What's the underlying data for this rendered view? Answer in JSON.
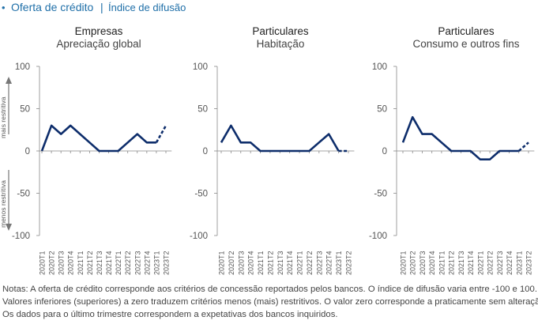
{
  "header": {
    "bullet": "•",
    "title": "Oferta de crédito",
    "separator": "|",
    "subtitle": "Índice de difusão"
  },
  "side_labels": {
    "top": "mais restritiva",
    "bottom": "menos restritiva"
  },
  "colors": {
    "line": "#0d2d6b",
    "header": "#1f6fa8",
    "axis": "#888888"
  },
  "chart_data": [
    {
      "type": "line",
      "title": "Empresas",
      "subtitle": "Apreciação global",
      "categories": [
        "2020T1",
        "2020T2",
        "2020T3",
        "2020T4",
        "2021T1",
        "2021T2",
        "2021T3",
        "2021T4",
        "2022T1",
        "2022T2",
        "2022T3",
        "2022T4",
        "2023T1",
        "2023T2"
      ],
      "values": [
        0,
        30,
        20,
        30,
        20,
        10,
        0,
        0,
        0,
        10,
        20,
        10,
        10,
        30
      ],
      "expectation_last": true,
      "ylim": [
        -100,
        100
      ],
      "yticks": [
        100,
        50,
        0,
        -50,
        -100
      ]
    },
    {
      "type": "line",
      "title": "Particulares",
      "subtitle": "Habitação",
      "categories": [
        "2020T1",
        "2020T2",
        "2020T3",
        "2020T4",
        "2021T1",
        "2021T2",
        "2021T3",
        "2021T4",
        "2022T1",
        "2022T2",
        "2022T3",
        "2022T4",
        "2023T1",
        "2023T2"
      ],
      "values": [
        10,
        30,
        10,
        10,
        0,
        0,
        0,
        0,
        0,
        0,
        10,
        20,
        0,
        0
      ],
      "expectation_last": true,
      "ylim": [
        -100,
        100
      ],
      "yticks": [
        100,
        50,
        0,
        -50,
        -100
      ]
    },
    {
      "type": "line",
      "title": "Particulares",
      "subtitle": "Consumo e outros fins",
      "categories": [
        "2020T1",
        "2020T2",
        "2020T3",
        "2020T4",
        "2021T1",
        "2021T2",
        "2021T3",
        "2021T4",
        "2022T1",
        "2022T2",
        "2022T3",
        "2022T4",
        "2023T1",
        "2023T2"
      ],
      "values": [
        10,
        40,
        20,
        20,
        10,
        0,
        0,
        0,
        -10,
        -10,
        0,
        0,
        0,
        10
      ],
      "expectation_last": true,
      "ylim": [
        -100,
        100
      ],
      "yticks": [
        100,
        50,
        0,
        -50,
        -100
      ]
    }
  ],
  "notes": [
    "Notas: A oferta de crédito corresponde aos critérios de concessão reportados pelos bancos. O índice de difusão varia entre -100 e 100.",
    "Valores inferiores (superiores) a zero traduzem critérios menos (mais) restritivos. O valor zero corresponde a praticamente sem alteração.",
    "Os dados para o último trimestre correspondem a expetativas dos bancos inquiridos."
  ]
}
